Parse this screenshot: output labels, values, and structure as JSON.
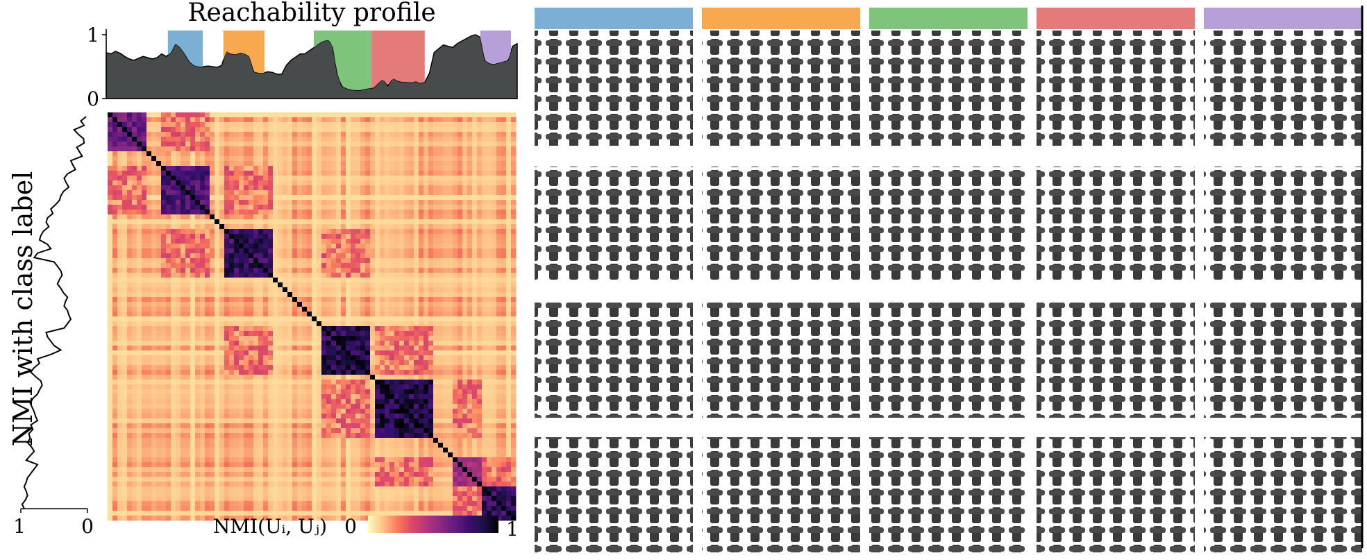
{
  "chart_data": [
    {
      "type": "area",
      "title": "Reachability profile",
      "ylim": [
        0,
        1
      ],
      "yticks": [
        "0",
        "1"
      ],
      "fill_color": "#474b4c",
      "profile": [
        0.72,
        0.7,
        0.74,
        0.71,
        0.66,
        0.62,
        0.6,
        0.63,
        0.66,
        0.64,
        0.62,
        0.64,
        0.7,
        0.66,
        0.72,
        0.86,
        0.8,
        0.7,
        0.58,
        0.52,
        0.5,
        0.5,
        0.51,
        0.5,
        0.49,
        0.52,
        0.74,
        0.7,
        0.69,
        0.72,
        0.7,
        0.66,
        0.42,
        0.4,
        0.4,
        0.42,
        0.41,
        0.38,
        0.38,
        0.52,
        0.6,
        0.65,
        0.7,
        0.7,
        0.75,
        0.8,
        0.86,
        0.9,
        0.92,
        0.85,
        0.4,
        0.2,
        0.16,
        0.14,
        0.13,
        0.13,
        0.15,
        0.16,
        0.17,
        0.25,
        0.3,
        0.2,
        0.32,
        0.28,
        0.26,
        0.26,
        0.25,
        0.27,
        0.24,
        0.26,
        0.4,
        0.72,
        0.78,
        0.84,
        0.82,
        0.8,
        0.86,
        0.9,
        0.94,
        0.98,
        1.0,
        0.96,
        0.6,
        0.55,
        0.54,
        0.56,
        0.58,
        0.6,
        0.82,
        0.86
      ],
      "clusters": [
        {
          "color": "#7bafd4",
          "start": 0.15,
          "end": 0.235
        },
        {
          "color": "#f8a94f",
          "start": 0.285,
          "end": 0.385
        },
        {
          "color": "#7ec47a",
          "start": 0.505,
          "end": 0.645
        },
        {
          "color": "#e57a7a",
          "start": 0.645,
          "end": 0.775
        },
        {
          "color": "#b79fd8",
          "start": 0.91,
          "end": 0.985
        }
      ]
    },
    {
      "type": "heatmap",
      "colorbar_label": "NMI(U_i, U_j)",
      "colorbar_ticks": [
        "0",
        "1"
      ],
      "colormap": [
        "#fcfdbf",
        "#fec488",
        "#fa7d5e",
        "#de4968",
        "#b5367a",
        "#8c2981",
        "#641a80",
        "#3b0f70",
        "#1c1044",
        "#000004"
      ],
      "blocks": [
        {
          "start": 0.0,
          "end": 0.09,
          "strength": 0.72
        },
        {
          "start": 0.13,
          "end": 0.25,
          "strength": 0.82
        },
        {
          "start": 0.29,
          "end": 0.4,
          "strength": 0.9
        },
        {
          "start": 0.52,
          "end": 0.64,
          "strength": 0.95
        },
        {
          "start": 0.66,
          "end": 0.8,
          "strength": 0.96
        },
        {
          "start": 0.85,
          "end": 0.92,
          "strength": 0.55
        },
        {
          "start": 0.92,
          "end": 1.0,
          "strength": 0.9
        }
      ]
    },
    {
      "type": "line",
      "ylabel": "NMI with class label",
      "xticks": [
        "1",
        "0"
      ],
      "profile": [
        0.02,
        0.1,
        0.05,
        0.2,
        0.14,
        0.06,
        0.05,
        0.16,
        0.12,
        0.08,
        0.25,
        0.22,
        0.18,
        0.3,
        0.35,
        0.32,
        0.28,
        0.36,
        0.4,
        0.42,
        0.48,
        0.55,
        0.52,
        0.6,
        0.62,
        0.58,
        0.66,
        0.7,
        0.72,
        0.6,
        0.55,
        0.75,
        0.8,
        0.5,
        0.45,
        0.4,
        0.38,
        0.42,
        0.45,
        0.4,
        0.36,
        0.3,
        0.33,
        0.35,
        0.3,
        0.28,
        0.25,
        0.3,
        0.35,
        0.62,
        0.6,
        0.55,
        0.5,
        0.4,
        0.55,
        0.75,
        0.72,
        0.8,
        0.85,
        0.78,
        0.7,
        0.68,
        0.72,
        0.75,
        0.82,
        0.86,
        0.83,
        0.8,
        0.78,
        0.75,
        0.85,
        0.82,
        0.88,
        0.86,
        0.9,
        0.84,
        0.8,
        0.86,
        0.92,
        0.75,
        0.8,
        0.85,
        0.9,
        0.92,
        0.95,
        0.92,
        0.9,
        0.93,
        0.98,
        0.95
      ]
    }
  ]
}
